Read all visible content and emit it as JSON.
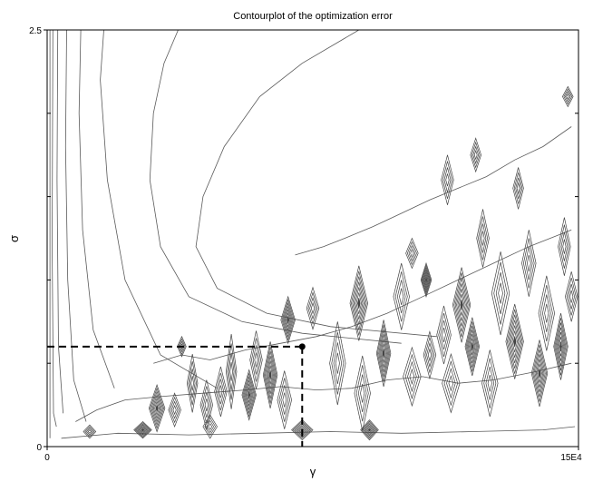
{
  "chart_data": {
    "type": "contour",
    "title": "Contourplot of the optimization error",
    "xlabel": "γ",
    "ylabel": "σ",
    "xlim": [
      0,
      150000
    ],
    "ylim": [
      0,
      2.5
    ],
    "x_tick_labels": [
      "0",
      "15E4"
    ],
    "y_tick_labels": [
      "0",
      "2.5"
    ],
    "x_ticks": [
      0,
      150000
    ],
    "y_ticks": [
      0,
      2.5
    ],
    "optimum": {
      "x": 72000,
      "y": 0.6
    },
    "grid": false,
    "legend": "none",
    "smooth_contours": [
      [
        [
          800,
          2.5
        ],
        [
          800,
          0.05
        ]
      ],
      [
        [
          1600,
          2.5
        ],
        [
          1400,
          1.2
        ],
        [
          1800,
          0.2
        ],
        [
          2600,
          0.12
        ]
      ],
      [
        [
          3000,
          2.5
        ],
        [
          2800,
          1.6
        ],
        [
          3200,
          0.6
        ],
        [
          4500,
          0.2
        ]
      ],
      [
        [
          5500,
          2.5
        ],
        [
          5200,
          1.8
        ],
        [
          5800,
          1.0
        ],
        [
          7500,
          0.4
        ],
        [
          11000,
          0.15
        ]
      ],
      [
        [
          9500,
          2.5
        ],
        [
          9000,
          2.0
        ],
        [
          10000,
          1.3
        ],
        [
          13000,
          0.7
        ],
        [
          19000,
          0.35
        ]
      ],
      [
        [
          16000,
          2.5
        ],
        [
          15000,
          2.2
        ],
        [
          17000,
          1.6
        ],
        [
          22000,
          1.0
        ],
        [
          32000,
          0.55
        ],
        [
          48000,
          0.35
        ]
      ],
      [
        [
          37000,
          2.5
        ],
        [
          33000,
          2.3
        ],
        [
          30000,
          2.0
        ],
        [
          29000,
          1.6
        ],
        [
          32000,
          1.2
        ],
        [
          40000,
          0.9
        ],
        [
          55000,
          0.75
        ],
        [
          72000,
          0.68
        ],
        [
          100000,
          0.62
        ]
      ],
      [
        [
          88000,
          2.5
        ],
        [
          72000,
          2.3
        ],
        [
          60000,
          2.1
        ],
        [
          50000,
          1.8
        ],
        [
          44000,
          1.5
        ],
        [
          42000,
          1.2
        ],
        [
          48000,
          0.95
        ],
        [
          62000,
          0.8
        ],
        [
          80000,
          0.72
        ],
        [
          110000,
          0.66
        ]
      ]
    ],
    "ragged_contours": [
      [
        [
          8000,
          0.15
        ],
        [
          14000,
          0.22
        ],
        [
          22000,
          0.28
        ],
        [
          32000,
          0.3
        ],
        [
          44000,
          0.32
        ],
        [
          56000,
          0.34
        ],
        [
          66000,
          0.36
        ],
        [
          76000,
          0.34
        ],
        [
          86000,
          0.35
        ],
        [
          96000,
          0.4
        ],
        [
          106000,
          0.42
        ],
        [
          116000,
          0.38
        ],
        [
          126000,
          0.4
        ],
        [
          138000,
          0.45
        ],
        [
          148000,
          0.5
        ]
      ],
      [
        [
          30000,
          0.5
        ],
        [
          38000,
          0.55
        ],
        [
          46000,
          0.52
        ],
        [
          56000,
          0.58
        ],
        [
          66000,
          0.62
        ],
        [
          76000,
          0.66
        ],
        [
          86000,
          0.72
        ],
        [
          96000,
          0.8
        ],
        [
          106000,
          0.9
        ],
        [
          116000,
          1.0
        ],
        [
          126000,
          1.1
        ],
        [
          136000,
          1.2
        ],
        [
          148000,
          1.3
        ]
      ],
      [
        [
          70000,
          1.15
        ],
        [
          78000,
          1.2
        ],
        [
          84000,
          1.25
        ],
        [
          92000,
          1.32
        ],
        [
          100000,
          1.4
        ],
        [
          108000,
          1.48
        ],
        [
          116000,
          1.55
        ],
        [
          124000,
          1.62
        ],
        [
          132000,
          1.72
        ],
        [
          140000,
          1.8
        ],
        [
          148000,
          1.92
        ]
      ],
      [
        [
          4000,
          0.05
        ],
        [
          20000,
          0.08
        ],
        [
          40000,
          0.07
        ],
        [
          60000,
          0.08
        ],
        [
          80000,
          0.09
        ],
        [
          100000,
          0.08
        ],
        [
          120000,
          0.09
        ],
        [
          140000,
          0.1
        ],
        [
          149000,
          0.12
        ]
      ]
    ],
    "diamond_clusters": [
      {
        "x": 31000,
        "y": 0.23,
        "w": 4500,
        "h": 0.28,
        "filled": true
      },
      {
        "x": 36000,
        "y": 0.22,
        "w": 3500,
        "h": 0.2,
        "filled": false
      },
      {
        "x": 41000,
        "y": 0.38,
        "w": 3000,
        "h": 0.35,
        "filled": false
      },
      {
        "x": 45000,
        "y": 0.25,
        "w": 3500,
        "h": 0.3,
        "filled": false
      },
      {
        "x": 38000,
        "y": 0.6,
        "w": 2500,
        "h": 0.12,
        "filled": false
      },
      {
        "x": 49000,
        "y": 0.33,
        "w": 3500,
        "h": 0.3,
        "filled": false
      },
      {
        "x": 52000,
        "y": 0.45,
        "w": 3000,
        "h": 0.45,
        "filled": false
      },
      {
        "x": 57000,
        "y": 0.31,
        "w": 4000,
        "h": 0.3,
        "filled": true
      },
      {
        "x": 59000,
        "y": 0.52,
        "w": 3500,
        "h": 0.35,
        "filled": false
      },
      {
        "x": 63000,
        "y": 0.43,
        "w": 4000,
        "h": 0.4,
        "filled": true
      },
      {
        "x": 67000,
        "y": 0.28,
        "w": 4000,
        "h": 0.35,
        "filled": false
      },
      {
        "x": 68000,
        "y": 0.76,
        "w": 4000,
        "h": 0.28,
        "filled": true
      },
      {
        "x": 75000,
        "y": 0.83,
        "w": 3500,
        "h": 0.25,
        "filled": false
      },
      {
        "x": 82000,
        "y": 0.5,
        "w": 4500,
        "h": 0.5,
        "filled": false
      },
      {
        "x": 88000,
        "y": 0.86,
        "w": 5000,
        "h": 0.45,
        "filled": true
      },
      {
        "x": 89000,
        "y": 0.32,
        "w": 4500,
        "h": 0.45,
        "filled": false
      },
      {
        "x": 95000,
        "y": 0.56,
        "w": 4000,
        "h": 0.4,
        "filled": true
      },
      {
        "x": 100000,
        "y": 0.9,
        "w": 4500,
        "h": 0.4,
        "filled": false
      },
      {
        "x": 103000,
        "y": 0.42,
        "w": 5000,
        "h": 0.35,
        "filled": false
      },
      {
        "x": 103000,
        "y": 1.16,
        "w": 3500,
        "h": 0.18,
        "filled": false
      },
      {
        "x": 107000,
        "y": 1.0,
        "w": 3000,
        "h": 0.2,
        "filled": true
      },
      {
        "x": 108000,
        "y": 0.55,
        "w": 3500,
        "h": 0.28,
        "filled": false
      },
      {
        "x": 112000,
        "y": 0.67,
        "w": 4000,
        "h": 0.35,
        "filled": false
      },
      {
        "x": 114000,
        "y": 0.38,
        "w": 5000,
        "h": 0.35,
        "filled": false
      },
      {
        "x": 117000,
        "y": 0.85,
        "w": 5000,
        "h": 0.45,
        "filled": true
      },
      {
        "x": 120000,
        "y": 0.6,
        "w": 4000,
        "h": 0.35,
        "filled": true
      },
      {
        "x": 123000,
        "y": 1.25,
        "w": 3500,
        "h": 0.35,
        "filled": false
      },
      {
        "x": 125000,
        "y": 0.38,
        "w": 4500,
        "h": 0.4,
        "filled": false
      },
      {
        "x": 128000,
        "y": 0.92,
        "w": 5000,
        "h": 0.5,
        "filled": false
      },
      {
        "x": 132000,
        "y": 0.63,
        "w": 5000,
        "h": 0.45,
        "filled": true
      },
      {
        "x": 133000,
        "y": 1.55,
        "w": 3000,
        "h": 0.25,
        "filled": false
      },
      {
        "x": 136000,
        "y": 1.1,
        "w": 4000,
        "h": 0.4,
        "filled": false
      },
      {
        "x": 139000,
        "y": 0.44,
        "w": 4500,
        "h": 0.4,
        "filled": true
      },
      {
        "x": 141000,
        "y": 0.8,
        "w": 4500,
        "h": 0.45,
        "filled": false
      },
      {
        "x": 145000,
        "y": 0.6,
        "w": 4000,
        "h": 0.4,
        "filled": true
      },
      {
        "x": 146000,
        "y": 1.2,
        "w": 3500,
        "h": 0.35,
        "filled": false
      },
      {
        "x": 148000,
        "y": 0.9,
        "w": 3500,
        "h": 0.3,
        "filled": false
      },
      {
        "x": 113000,
        "y": 1.6,
        "w": 3500,
        "h": 0.3,
        "filled": false
      },
      {
        "x": 121000,
        "y": 1.75,
        "w": 3000,
        "h": 0.2,
        "filled": false
      },
      {
        "x": 147000,
        "y": 2.1,
        "w": 3000,
        "h": 0.12,
        "filled": false
      },
      {
        "x": 72000,
        "y": 0.1,
        "w": 6000,
        "h": 0.12,
        "filled": true
      },
      {
        "x": 91000,
        "y": 0.1,
        "w": 5000,
        "h": 0.12,
        "filled": true
      },
      {
        "x": 27000,
        "y": 0.1,
        "w": 5000,
        "h": 0.1,
        "filled": true
      },
      {
        "x": 46000,
        "y": 0.12,
        "w": 4000,
        "h": 0.14,
        "filled": false
      },
      {
        "x": 12000,
        "y": 0.09,
        "w": 3500,
        "h": 0.08,
        "filled": false
      }
    ],
    "colors": {
      "contour": "#5a5a5a",
      "contour_dark": "#444444",
      "axis": "#000000",
      "marker": "#000000"
    }
  }
}
